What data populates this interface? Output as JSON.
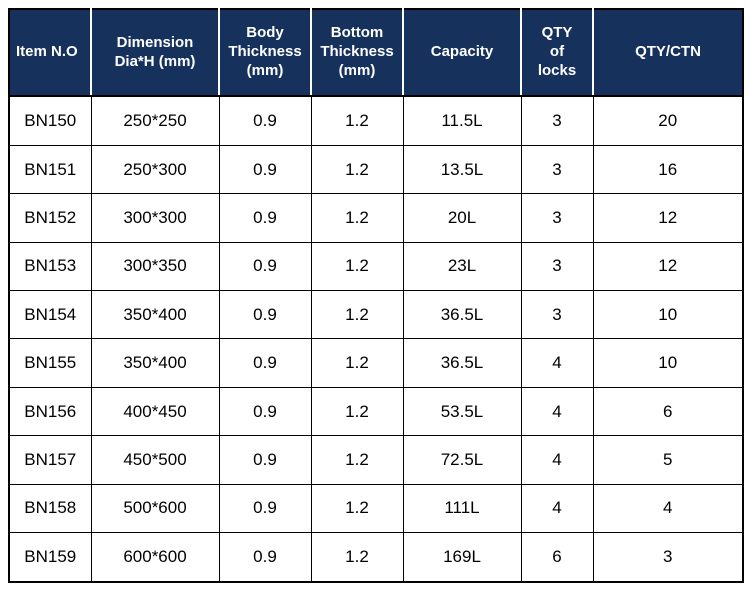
{
  "colors": {
    "header_bg": "#16325c",
    "header_text": "#ffffff",
    "body_text": "#000000",
    "border": "#000000"
  },
  "table": {
    "headers": [
      "Item N.O",
      "Dimension\nDia*H (mm)",
      "Body\nThickness\n(mm)",
      "Bottom\nThickness\n(mm)",
      "Capacity",
      "QTY\nof\nlocks",
      "QTY/CTN"
    ],
    "rows": [
      [
        "BN150",
        "250*250",
        "0.9",
        "1.2",
        "11.5L",
        "3",
        "20"
      ],
      [
        "BN151",
        "250*300",
        "0.9",
        "1.2",
        "13.5L",
        "3",
        "16"
      ],
      [
        "BN152",
        "300*300",
        "0.9",
        "1.2",
        "20L",
        "3",
        "12"
      ],
      [
        "BN153",
        "300*350",
        "0.9",
        "1.2",
        "23L",
        "3",
        "12"
      ],
      [
        "BN154",
        "350*400",
        "0.9",
        "1.2",
        "36.5L",
        "3",
        "10"
      ],
      [
        "BN155",
        "350*400",
        "0.9",
        "1.2",
        "36.5L",
        "4",
        "10"
      ],
      [
        "BN156",
        "400*450",
        "0.9",
        "1.2",
        "53.5L",
        "4",
        "6"
      ],
      [
        "BN157",
        "450*500",
        "0.9",
        "1.2",
        "72.5L",
        "4",
        "5"
      ],
      [
        "BN158",
        "500*600",
        "0.9",
        "1.2",
        "111L",
        "4",
        "4"
      ],
      [
        "BN159",
        "600*600",
        "0.9",
        "1.2",
        "169L",
        "6",
        "3"
      ]
    ]
  },
  "chart_data": {
    "type": "table",
    "title": "",
    "columns": [
      "Item N.O",
      "Dimension Dia*H (mm)",
      "Body Thickness (mm)",
      "Bottom Thickness (mm)",
      "Capacity",
      "QTY of locks",
      "QTY/CTN"
    ],
    "rows": [
      [
        "BN150",
        "250*250",
        0.9,
        1.2,
        "11.5L",
        3,
        20
      ],
      [
        "BN151",
        "250*300",
        0.9,
        1.2,
        "13.5L",
        3,
        16
      ],
      [
        "BN152",
        "300*300",
        0.9,
        1.2,
        "20L",
        3,
        12
      ],
      [
        "BN153",
        "300*350",
        0.9,
        1.2,
        "23L",
        3,
        12
      ],
      [
        "BN154",
        "350*400",
        0.9,
        1.2,
        "36.5L",
        3,
        10
      ],
      [
        "BN155",
        "350*400",
        0.9,
        1.2,
        "36.5L",
        4,
        10
      ],
      [
        "BN156",
        "400*450",
        0.9,
        1.2,
        "53.5L",
        4,
        6
      ],
      [
        "BN157",
        "450*500",
        0.9,
        1.2,
        "72.5L",
        4,
        5
      ],
      [
        "BN158",
        "500*600",
        0.9,
        1.2,
        "111L",
        4,
        4
      ],
      [
        "BN159",
        "600*600",
        0.9,
        1.2,
        "169L",
        6,
        3
      ]
    ]
  }
}
